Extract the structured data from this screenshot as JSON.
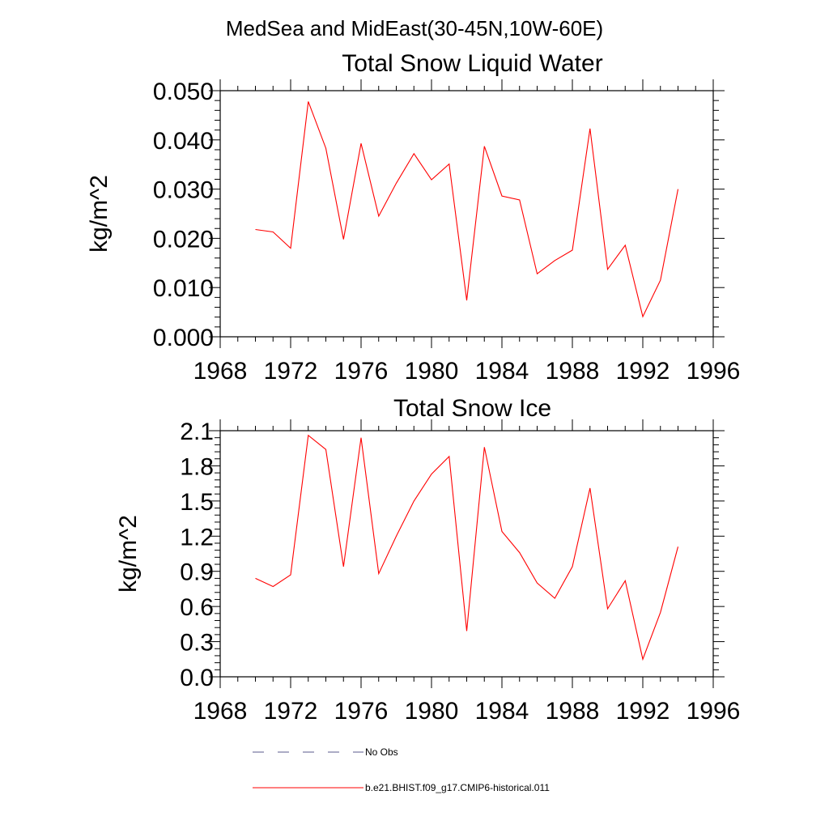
{
  "suptitle": "MedSea and MidEast(30-45N,10W-60E)",
  "chart_data": [
    {
      "type": "line",
      "title": "Total Snow Liquid Water",
      "xlabel": "",
      "ylabel": "kg/m^2",
      "xlim": [
        1968,
        1996
      ],
      "ylim": [
        0.0,
        0.05
      ],
      "x_ticks": [
        1968,
        1972,
        1976,
        1980,
        1984,
        1988,
        1992,
        1996
      ],
      "x_tick_labels": [
        "1968",
        "1972",
        "1976",
        "1980",
        "1984",
        "1988",
        "1992",
        "1996"
      ],
      "y_ticks": [
        0.0,
        0.01,
        0.02,
        0.03,
        0.04,
        0.05
      ],
      "y_tick_labels": [
        "0.000",
        "0.010",
        "0.020",
        "0.030",
        "0.040",
        "0.050"
      ],
      "grid": false,
      "x": [
        1970,
        1971,
        1972,
        1973,
        1974,
        1975,
        1976,
        1977,
        1978,
        1979,
        1980,
        1981,
        1982,
        1983,
        1984,
        1985,
        1986,
        1987,
        1988,
        1989,
        1990,
        1991,
        1992,
        1993,
        1994
      ],
      "series": [
        {
          "name": "b.e21.BHIST.f09_g17.CMIP6-historical.011",
          "color": "#ff0000",
          "values": [
            0.0218,
            0.0213,
            0.018,
            0.0478,
            0.0383,
            0.0198,
            0.0393,
            0.0245,
            0.0312,
            0.0372,
            0.0319,
            0.0351,
            0.0074,
            0.0387,
            0.0286,
            0.0278,
            0.0128,
            0.0155,
            0.0176,
            0.0423,
            0.0137,
            0.0186,
            0.0041,
            0.0115,
            0.03
          ]
        }
      ]
    },
    {
      "type": "line",
      "title": "Total Snow Ice",
      "xlabel": "",
      "ylabel": "kg/m^2",
      "xlim": [
        1968,
        1996
      ],
      "ylim": [
        0.0,
        2.1
      ],
      "x_ticks": [
        1968,
        1972,
        1976,
        1980,
        1984,
        1988,
        1992,
        1996
      ],
      "x_tick_labels": [
        "1968",
        "1972",
        "1976",
        "1980",
        "1984",
        "1988",
        "1992",
        "1996"
      ],
      "y_ticks": [
        0.0,
        0.3,
        0.6,
        0.9,
        1.2,
        1.5,
        1.8,
        2.1
      ],
      "y_tick_labels": [
        "0.0",
        "0.3",
        "0.6",
        "0.9",
        "1.2",
        "1.5",
        "1.8",
        "2.1"
      ],
      "grid": false,
      "x": [
        1970,
        1971,
        1972,
        1973,
        1974,
        1975,
        1976,
        1977,
        1978,
        1979,
        1980,
        1981,
        1982,
        1983,
        1984,
        1985,
        1986,
        1987,
        1988,
        1989,
        1990,
        1991,
        1992,
        1993,
        1994
      ],
      "series": [
        {
          "name": "b.e21.BHIST.f09_g17.CMIP6-historical.011",
          "color": "#ff0000",
          "values": [
            0.84,
            0.77,
            0.87,
            2.06,
            1.94,
            0.94,
            2.04,
            0.88,
            1.2,
            1.5,
            1.73,
            1.88,
            0.39,
            1.96,
            1.24,
            1.06,
            0.8,
            0.67,
            0.94,
            1.61,
            0.58,
            0.82,
            0.15,
            0.55,
            1.11
          ]
        }
      ]
    }
  ],
  "legend": [
    {
      "label": "No Obs",
      "style": "dashed",
      "color": "#5a5a8c"
    },
    {
      "label": "b.e21.BHIST.f09_g17.CMIP6-historical.011",
      "style": "solid",
      "color": "#ff0000"
    }
  ]
}
